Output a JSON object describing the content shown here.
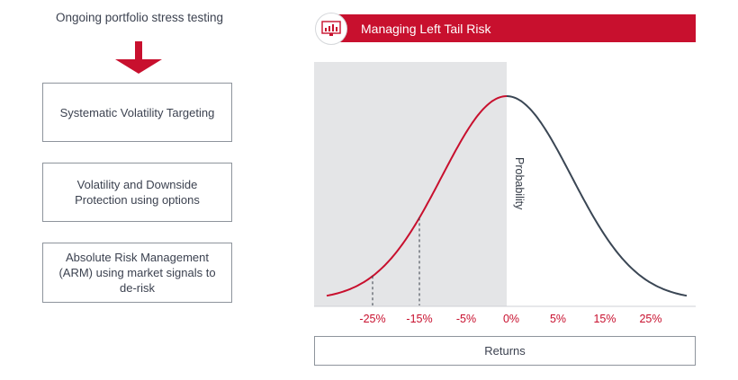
{
  "left_panel": {
    "heading": "Ongoing portfolio stress testing",
    "boxes": [
      {
        "label": "Systematic Volatility Targeting"
      },
      {
        "label": "Volatility and Downside Protection using options"
      },
      {
        "label": "Absolute Risk Management (ARM) using market signals to de-risk"
      }
    ],
    "arrow_color": "#c8102e"
  },
  "banner": {
    "title": "Managing Left Tail Risk",
    "icon": "bar-chart-monitor-icon",
    "color": "#c8102e"
  },
  "chart_data": {
    "type": "area",
    "title": "Managing Left Tail Risk",
    "xlabel": "Returns",
    "ylabel": "Probability",
    "categories": [
      "-25%",
      "-15%",
      "-5%",
      "0%",
      "5%",
      "15%",
      "25%"
    ],
    "distribution": "normal",
    "shaded_region": "left of 0%",
    "markers": [
      "-25%",
      "-15%"
    ],
    "left_tail_color": "#c8102e",
    "right_tail_color": "#3a4654",
    "shade_color": "#e4e5e7"
  }
}
